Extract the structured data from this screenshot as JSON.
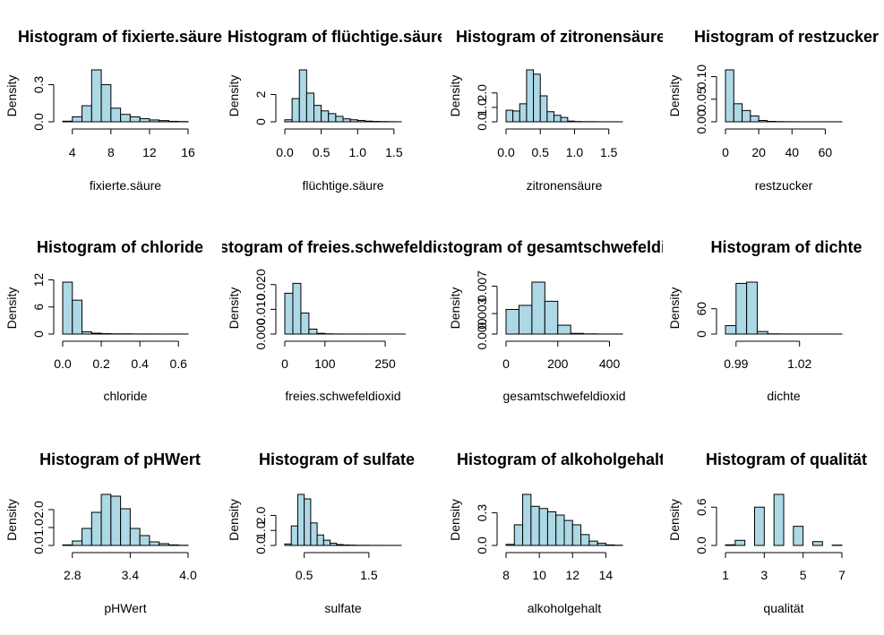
{
  "chart_data": [
    {
      "type": "histogram",
      "title": "Histogram of fixierte.säure",
      "xlabel": "fixierte.säure",
      "ylabel": "Density",
      "bin_edges": [
        3,
        4,
        5,
        6,
        7,
        8,
        9,
        10,
        11,
        12,
        13,
        14,
        15,
        16
      ],
      "values": [
        0.005,
        0.04,
        0.13,
        0.42,
        0.3,
        0.11,
        0.06,
        0.04,
        0.025,
        0.015,
        0.01,
        0.004,
        0.002
      ],
      "xticks": [
        4,
        8,
        12,
        16
      ],
      "xtick_labels": [
        "4",
        "8",
        "12",
        "16"
      ],
      "yticks": [
        0,
        0.3
      ],
      "ytick_labels": [
        "0.0",
        "0.3"
      ],
      "xlim": [
        3,
        16
      ],
      "ylim": [
        0,
        0.42
      ]
    },
    {
      "type": "histogram",
      "title": "Histogram of flüchtige.säure",
      "xlabel": "flüchtige.säure",
      "ylabel": "Density",
      "bin_edges": [
        0,
        0.1,
        0.2,
        0.3,
        0.4,
        0.5,
        0.6,
        0.7,
        0.8,
        0.9,
        1.0,
        1.1,
        1.2,
        1.3,
        1.4,
        1.5,
        1.6
      ],
      "values": [
        0.15,
        1.7,
        3.8,
        2.1,
        1.2,
        0.8,
        0.6,
        0.4,
        0.22,
        0.15,
        0.1,
        0.05,
        0.03,
        0.02,
        0.01,
        0.005
      ],
      "xticks": [
        0,
        0.5,
        1.0,
        1.5
      ],
      "xtick_labels": [
        "0.0",
        "0.5",
        "1.0",
        "1.5"
      ],
      "yticks": [
        0,
        2
      ],
      "ytick_labels": [
        "0",
        "2"
      ],
      "xlim": [
        0,
        1.6
      ],
      "ylim": [
        0,
        3.8
      ]
    },
    {
      "type": "histogram",
      "title": "Histogram of zitronensäure",
      "xlabel": "zitronensäure",
      "ylabel": "Density",
      "bin_edges": [
        0,
        0.1,
        0.2,
        0.3,
        0.4,
        0.5,
        0.6,
        0.7,
        0.8,
        0.9,
        1.0,
        1.1,
        1.2,
        1.3,
        1.4,
        1.5,
        1.6,
        1.7
      ],
      "values": [
        0.8,
        0.75,
        1.25,
        3.6,
        3.3,
        1.8,
        0.7,
        0.45,
        0.3,
        0.05,
        0.02,
        0.01,
        0.01,
        0.005,
        0.003,
        0.003,
        0.002
      ],
      "xticks": [
        0,
        0.5,
        1.0,
        1.5
      ],
      "xtick_labels": [
        "0.0",
        "0.5",
        "1.0",
        "1.5"
      ],
      "yticks": [
        0,
        1,
        2
      ],
      "ytick_labels": [
        "0.0",
        "1.0",
        "2.0"
      ],
      "xlim": [
        0,
        1.7
      ],
      "ylim": [
        0,
        3.6
      ]
    },
    {
      "type": "histogram",
      "title": "Histogram of restzucker",
      "xlabel": "restzucker",
      "ylabel": "Density",
      "bin_edges": [
        0,
        5,
        10,
        15,
        20,
        25,
        30,
        35,
        40,
        45,
        50,
        55,
        60,
        65,
        70
      ],
      "values": [
        0.115,
        0.04,
        0.025,
        0.013,
        0.003,
        0.001,
        0.0005,
        0.0003,
        0.0002,
        0.0001,
        0.0001,
        0.0001,
        0.0001,
        0.0001
      ],
      "xticks": [
        0,
        20,
        40,
        60
      ],
      "xtick_labels": [
        "0",
        "20",
        "40",
        "60"
      ],
      "yticks": [
        0,
        0.05,
        0.1
      ],
      "ytick_labels": [
        "0.00",
        "0.05",
        "0.10"
      ],
      "xlim": [
        0,
        70
      ],
      "ylim": [
        0,
        0.115
      ]
    },
    {
      "type": "histogram",
      "title": "Histogram of chloride",
      "xlabel": "chloride",
      "ylabel": "Density",
      "bin_edges": [
        0,
        0.05,
        0.1,
        0.15,
        0.2,
        0.25,
        0.3,
        0.35,
        0.4,
        0.45,
        0.5,
        0.55,
        0.6,
        0.65
      ],
      "values": [
        11.5,
        7.5,
        0.5,
        0.2,
        0.1,
        0.05,
        0.05,
        0.03,
        0.02,
        0.02,
        0.01,
        0.01,
        0.01
      ],
      "xticks": [
        0,
        0.2,
        0.4,
        0.6
      ],
      "xtick_labels": [
        "0.0",
        "0.2",
        "0.4",
        "0.6"
      ],
      "yticks": [
        0,
        6,
        12
      ],
      "ytick_labels": [
        "0",
        "6",
        "12"
      ],
      "xlim": [
        0,
        0.65
      ],
      "ylim": [
        0,
        11.5
      ]
    },
    {
      "type": "histogram",
      "title": "Histogram of freies.schwefeldioxid",
      "xlabel": "freies.schwefeldioxid",
      "ylabel": "Density",
      "bin_edges": [
        0,
        20,
        40,
        60,
        80,
        100,
        120,
        140,
        160,
        180,
        200,
        220,
        240,
        260,
        280,
        300
      ],
      "values": [
        0.0165,
        0.0205,
        0.0085,
        0.002,
        0.0003,
        0.0001,
        5e-05,
        3e-05,
        2e-05,
        2e-05,
        1e-05,
        1e-05,
        1e-05,
        1e-05,
        1e-05
      ],
      "xticks": [
        0,
        100,
        250
      ],
      "xtick_labels": [
        "0",
        "100",
        "250"
      ],
      "yticks": [
        0,
        0.01,
        0.02
      ],
      "ytick_labels": [
        "0.000",
        "0.010",
        "0.020"
      ],
      "xlim": [
        0,
        290
      ],
      "ylim": [
        0,
        0.021
      ]
    },
    {
      "type": "histogram",
      "title": "Histogram of gesamtschwefeldioxid",
      "xlabel": "gesamtschwefeldioxid",
      "ylabel": "Density",
      "bin_edges": [
        0,
        50,
        100,
        150,
        200,
        250,
        300,
        350,
        400,
        450
      ],
      "values": [
        0.0036,
        0.0042,
        0.0076,
        0.0048,
        0.0013,
        0.0001,
        3e-05,
        1e-05,
        1e-05
      ],
      "xticks": [
        0,
        200,
        400
      ],
      "xtick_labels": [
        "0",
        "200",
        "400"
      ],
      "yticks": [
        0,
        0.003,
        0.007
      ],
      "ytick_labels": [
        "0.000",
        "0.003",
        "0.007"
      ],
      "xlim": [
        0,
        450
      ],
      "ylim": [
        0,
        0.0076
      ]
    },
    {
      "type": "histogram",
      "title": "Histogram of dichte",
      "xlabel": "dichte",
      "ylabel": "Density",
      "bin_edges": [
        0.985,
        0.99,
        0.995,
        1.0,
        1.005,
        1.01,
        1.015,
        1.02,
        1.025,
        1.03,
        1.035,
        1.04
      ],
      "values": [
        20,
        120,
        123,
        6,
        0.5,
        0.3,
        0.2,
        0.1,
        0.1,
        0.1,
        0.1
      ],
      "xticks": [
        0.99,
        1.02
      ],
      "xtick_labels": [
        "0.99",
        "1.02"
      ],
      "yticks": [
        0,
        60
      ],
      "ytick_labels": [
        "0",
        "60"
      ],
      "xlim": [
        0.985,
        1.04
      ],
      "ylim": [
        0,
        123
      ]
    },
    {
      "type": "histogram",
      "title": "Histogram of pHWert",
      "xlabel": "pHWert",
      "ylabel": "Density",
      "bin_edges": [
        2.7,
        2.8,
        2.9,
        3.0,
        3.1,
        3.2,
        3.3,
        3.4,
        3.5,
        3.6,
        3.7,
        3.8,
        3.9,
        4.0
      ],
      "values": [
        0.03,
        0.25,
        0.95,
        1.85,
        2.85,
        2.75,
        2.05,
        0.95,
        0.55,
        0.2,
        0.1,
        0.03,
        0.01
      ],
      "xticks": [
        2.8,
        3.4,
        4.0
      ],
      "xtick_labels": [
        "2.8",
        "3.4",
        "4.0"
      ],
      "yticks": [
        0,
        1,
        2
      ],
      "ytick_labels": [
        "0.0",
        "1.0",
        "2.0"
      ],
      "xlim": [
        2.7,
        4.0
      ],
      "ylim": [
        0,
        2.85
      ]
    },
    {
      "type": "histogram",
      "title": "Histogram of sulfate",
      "xlabel": "sulfate",
      "ylabel": "Density",
      "bin_edges": [
        0.2,
        0.3,
        0.4,
        0.5,
        0.6,
        0.7,
        0.8,
        0.9,
        1.0,
        1.1,
        1.2,
        1.3,
        1.4,
        1.5,
        1.6,
        1.7,
        1.8,
        1.9,
        2.0
      ],
      "values": [
        0.1,
        1.3,
        3.4,
        3.1,
        1.5,
        0.7,
        0.35,
        0.15,
        0.06,
        0.03,
        0.02,
        0.01,
        0.01,
        0.005,
        0.005,
        0.004,
        0.003,
        0.002
      ],
      "xticks": [
        0.5,
        1.5
      ],
      "xtick_labels": [
        "0.5",
        "1.5"
      ],
      "yticks": [
        0,
        1,
        2
      ],
      "ytick_labels": [
        "0.0",
        "1.0",
        "2.0"
      ],
      "xlim": [
        0.2,
        2.0
      ],
      "ylim": [
        0,
        3.4
      ]
    },
    {
      "type": "histogram",
      "title": "Histogram of alkoholgehalt",
      "xlabel": "alkoholgehalt",
      "ylabel": "Density",
      "bin_edges": [
        8,
        8.5,
        9,
        9.5,
        10,
        10.5,
        11,
        11.5,
        12,
        12.5,
        13,
        13.5,
        14,
        14.5,
        15
      ],
      "values": [
        0.01,
        0.19,
        0.47,
        0.36,
        0.34,
        0.31,
        0.28,
        0.23,
        0.19,
        0.1,
        0.04,
        0.02,
        0.005,
        0.002
      ],
      "xticks": [
        8,
        10,
        12,
        14
      ],
      "xtick_labels": [
        "8",
        "10",
        "12",
        "14"
      ],
      "yticks": [
        0,
        0.3
      ],
      "ytick_labels": [
        "0.0",
        "0.3"
      ],
      "xlim": [
        8,
        15
      ],
      "ylim": [
        0,
        0.47
      ]
    },
    {
      "type": "histogram",
      "title": "Histogram of qualität",
      "xlabel": "qualität",
      "ylabel": "Density",
      "bin_edges": [
        1,
        1.5,
        2,
        2.5,
        3,
        3.5,
        4,
        4.5,
        5,
        5.5,
        6,
        6.5,
        7
      ],
      "values": [
        0.01,
        0.08,
        0,
        0.6,
        0,
        0.8,
        0,
        0.3,
        0,
        0.06,
        0,
        0.005
      ],
      "xticks": [
        1,
        3,
        5,
        7
      ],
      "xtick_labels": [
        "1",
        "3",
        "5",
        "7"
      ],
      "yticks": [
        0,
        0.6
      ],
      "ytick_labels": [
        "0.0",
        "0.6"
      ],
      "xlim": [
        1,
        7
      ],
      "ylim": [
        0,
        0.8
      ]
    }
  ],
  "bar_color": "#add8e6"
}
